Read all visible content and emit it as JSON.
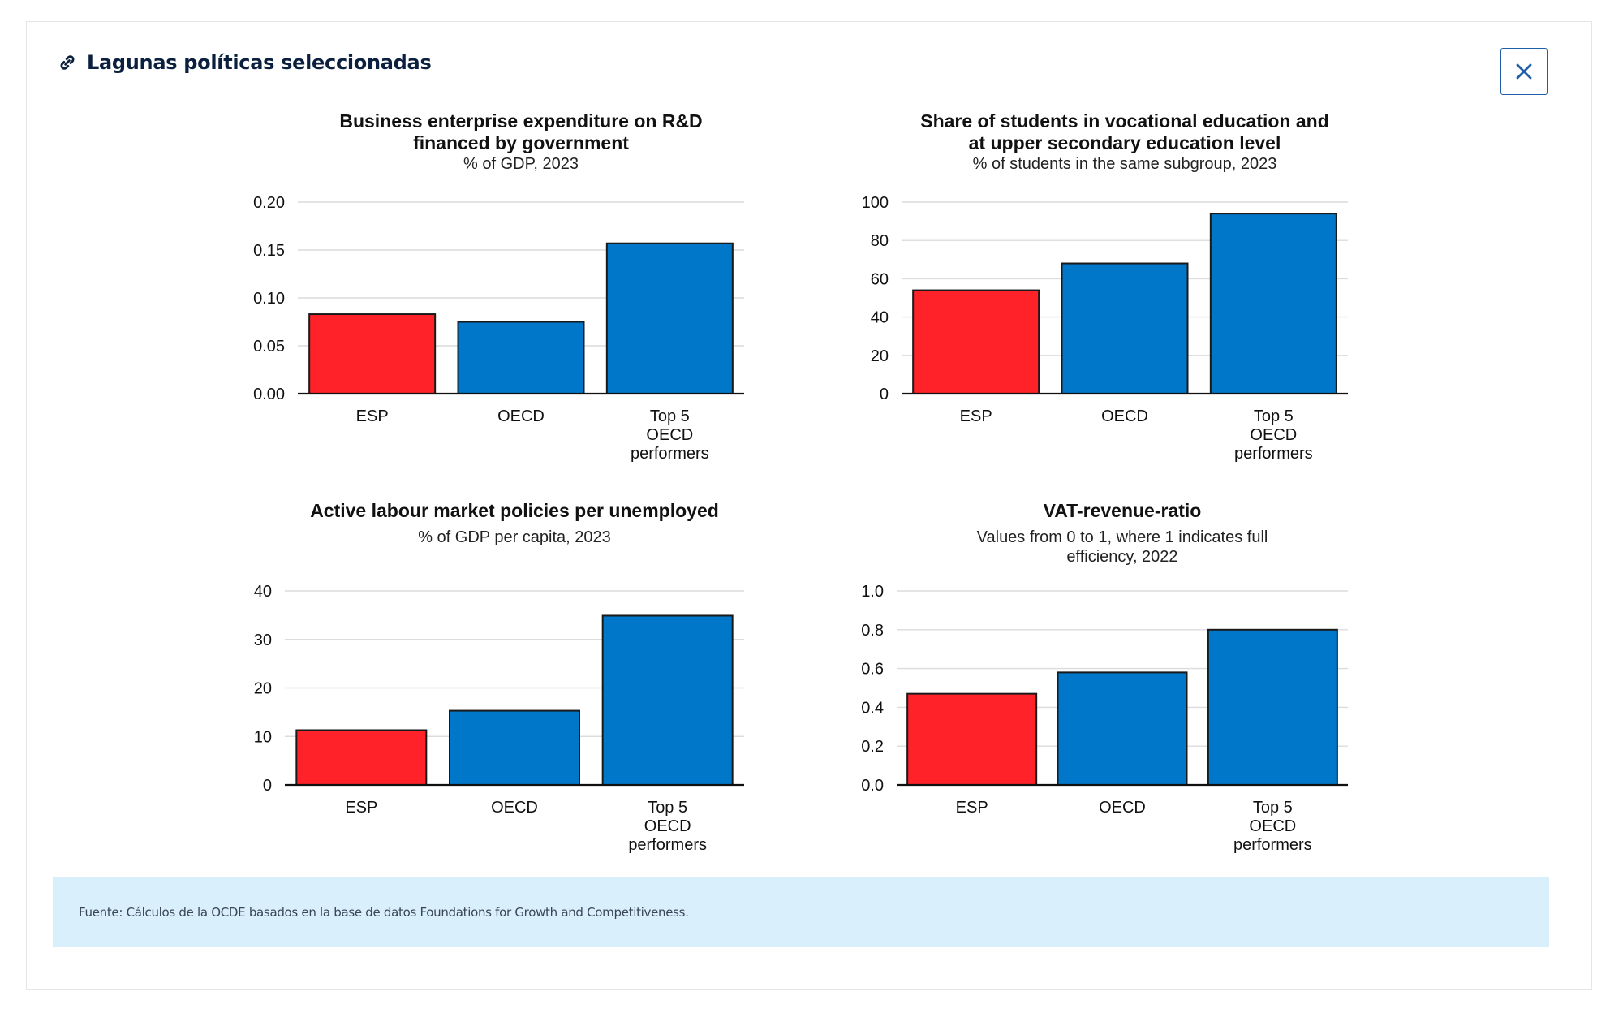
{
  "panel": {
    "title": "Lagunas políticas seleccionadas",
    "icon": "link-icon",
    "close_icon": "close-icon",
    "source": "Fuente: Cálculos de la OCDE basados en la base de datos Foundations for Growth and Competitiveness."
  },
  "colors": {
    "highlight": "#ff2229",
    "default": "#0077c8",
    "accent": "#1f5fa8",
    "source_bg": "#d9effc"
  },
  "chart_data": [
    {
      "type": "bar",
      "title": [
        "Business enterprise expenditure on R&D",
        "financed by government"
      ],
      "subtitle": [
        "% of GDP, 2023"
      ],
      "categories": [
        "ESP",
        "OECD",
        "Top 5 OECD performers"
      ],
      "category_lines": [
        [
          "ESP"
        ],
        [
          "OECD"
        ],
        [
          "Top 5",
          "OECD",
          "performers"
        ]
      ],
      "values": [
        0.083,
        0.075,
        0.157
      ],
      "yticks": [
        "0.00",
        "0.05",
        "0.10",
        "0.15",
        "0.20"
      ],
      "ylim": [
        0,
        0.2
      ],
      "grid": true,
      "bar_colors": [
        "#ff2229",
        "#0077c8",
        "#0077c8"
      ]
    },
    {
      "type": "bar",
      "title": [
        "Share of students in vocational education and",
        "at upper secondary education level"
      ],
      "subtitle": [
        "% of students in the same subgroup, 2023"
      ],
      "categories": [
        "ESP",
        "OECD",
        "Top 5 OECD performers"
      ],
      "category_lines": [
        [
          "ESP"
        ],
        [
          "OECD"
        ],
        [
          "Top 5",
          "OECD",
          "performers"
        ]
      ],
      "values": [
        54,
        68,
        94
      ],
      "yticks": [
        "0",
        "20",
        "40",
        "60",
        "80",
        "100"
      ],
      "ylim": [
        0,
        100
      ],
      "grid": true,
      "bar_colors": [
        "#ff2229",
        "#0077c8",
        "#0077c8"
      ]
    },
    {
      "type": "bar",
      "title": [
        "Active labour market policies per unemployed"
      ],
      "subtitle": [
        "% of GDP per capita, 2023"
      ],
      "categories": [
        "ESP",
        "OECD",
        "Top 5 OECD performers"
      ],
      "category_lines": [
        [
          "ESP"
        ],
        [
          "OECD"
        ],
        [
          "Top 5",
          "OECD",
          "performers"
        ]
      ],
      "values": [
        11.3,
        15.3,
        34.9
      ],
      "yticks": [
        "0",
        "10",
        "20",
        "30",
        "40"
      ],
      "ylim": [
        0,
        40
      ],
      "grid": true,
      "bar_colors": [
        "#ff2229",
        "#0077c8",
        "#0077c8"
      ]
    },
    {
      "type": "bar",
      "title": [
        "VAT-revenue-ratio"
      ],
      "subtitle": [
        "Values from 0 to 1, where 1 indicates full",
        "efficiency, 2022"
      ],
      "categories": [
        "ESP",
        "OECD",
        "Top 5 OECD performers"
      ],
      "category_lines": [
        [
          "ESP"
        ],
        [
          "OECD"
        ],
        [
          "Top 5",
          "OECD",
          "performers"
        ]
      ],
      "values": [
        0.47,
        0.58,
        0.8
      ],
      "yticks": [
        "0.0",
        "0.2",
        "0.4",
        "0.6",
        "0.8",
        "1.0"
      ],
      "ylim": [
        0,
        1
      ],
      "grid": true,
      "bar_colors": [
        "#ff2229",
        "#0077c8",
        "#0077c8"
      ]
    }
  ]
}
